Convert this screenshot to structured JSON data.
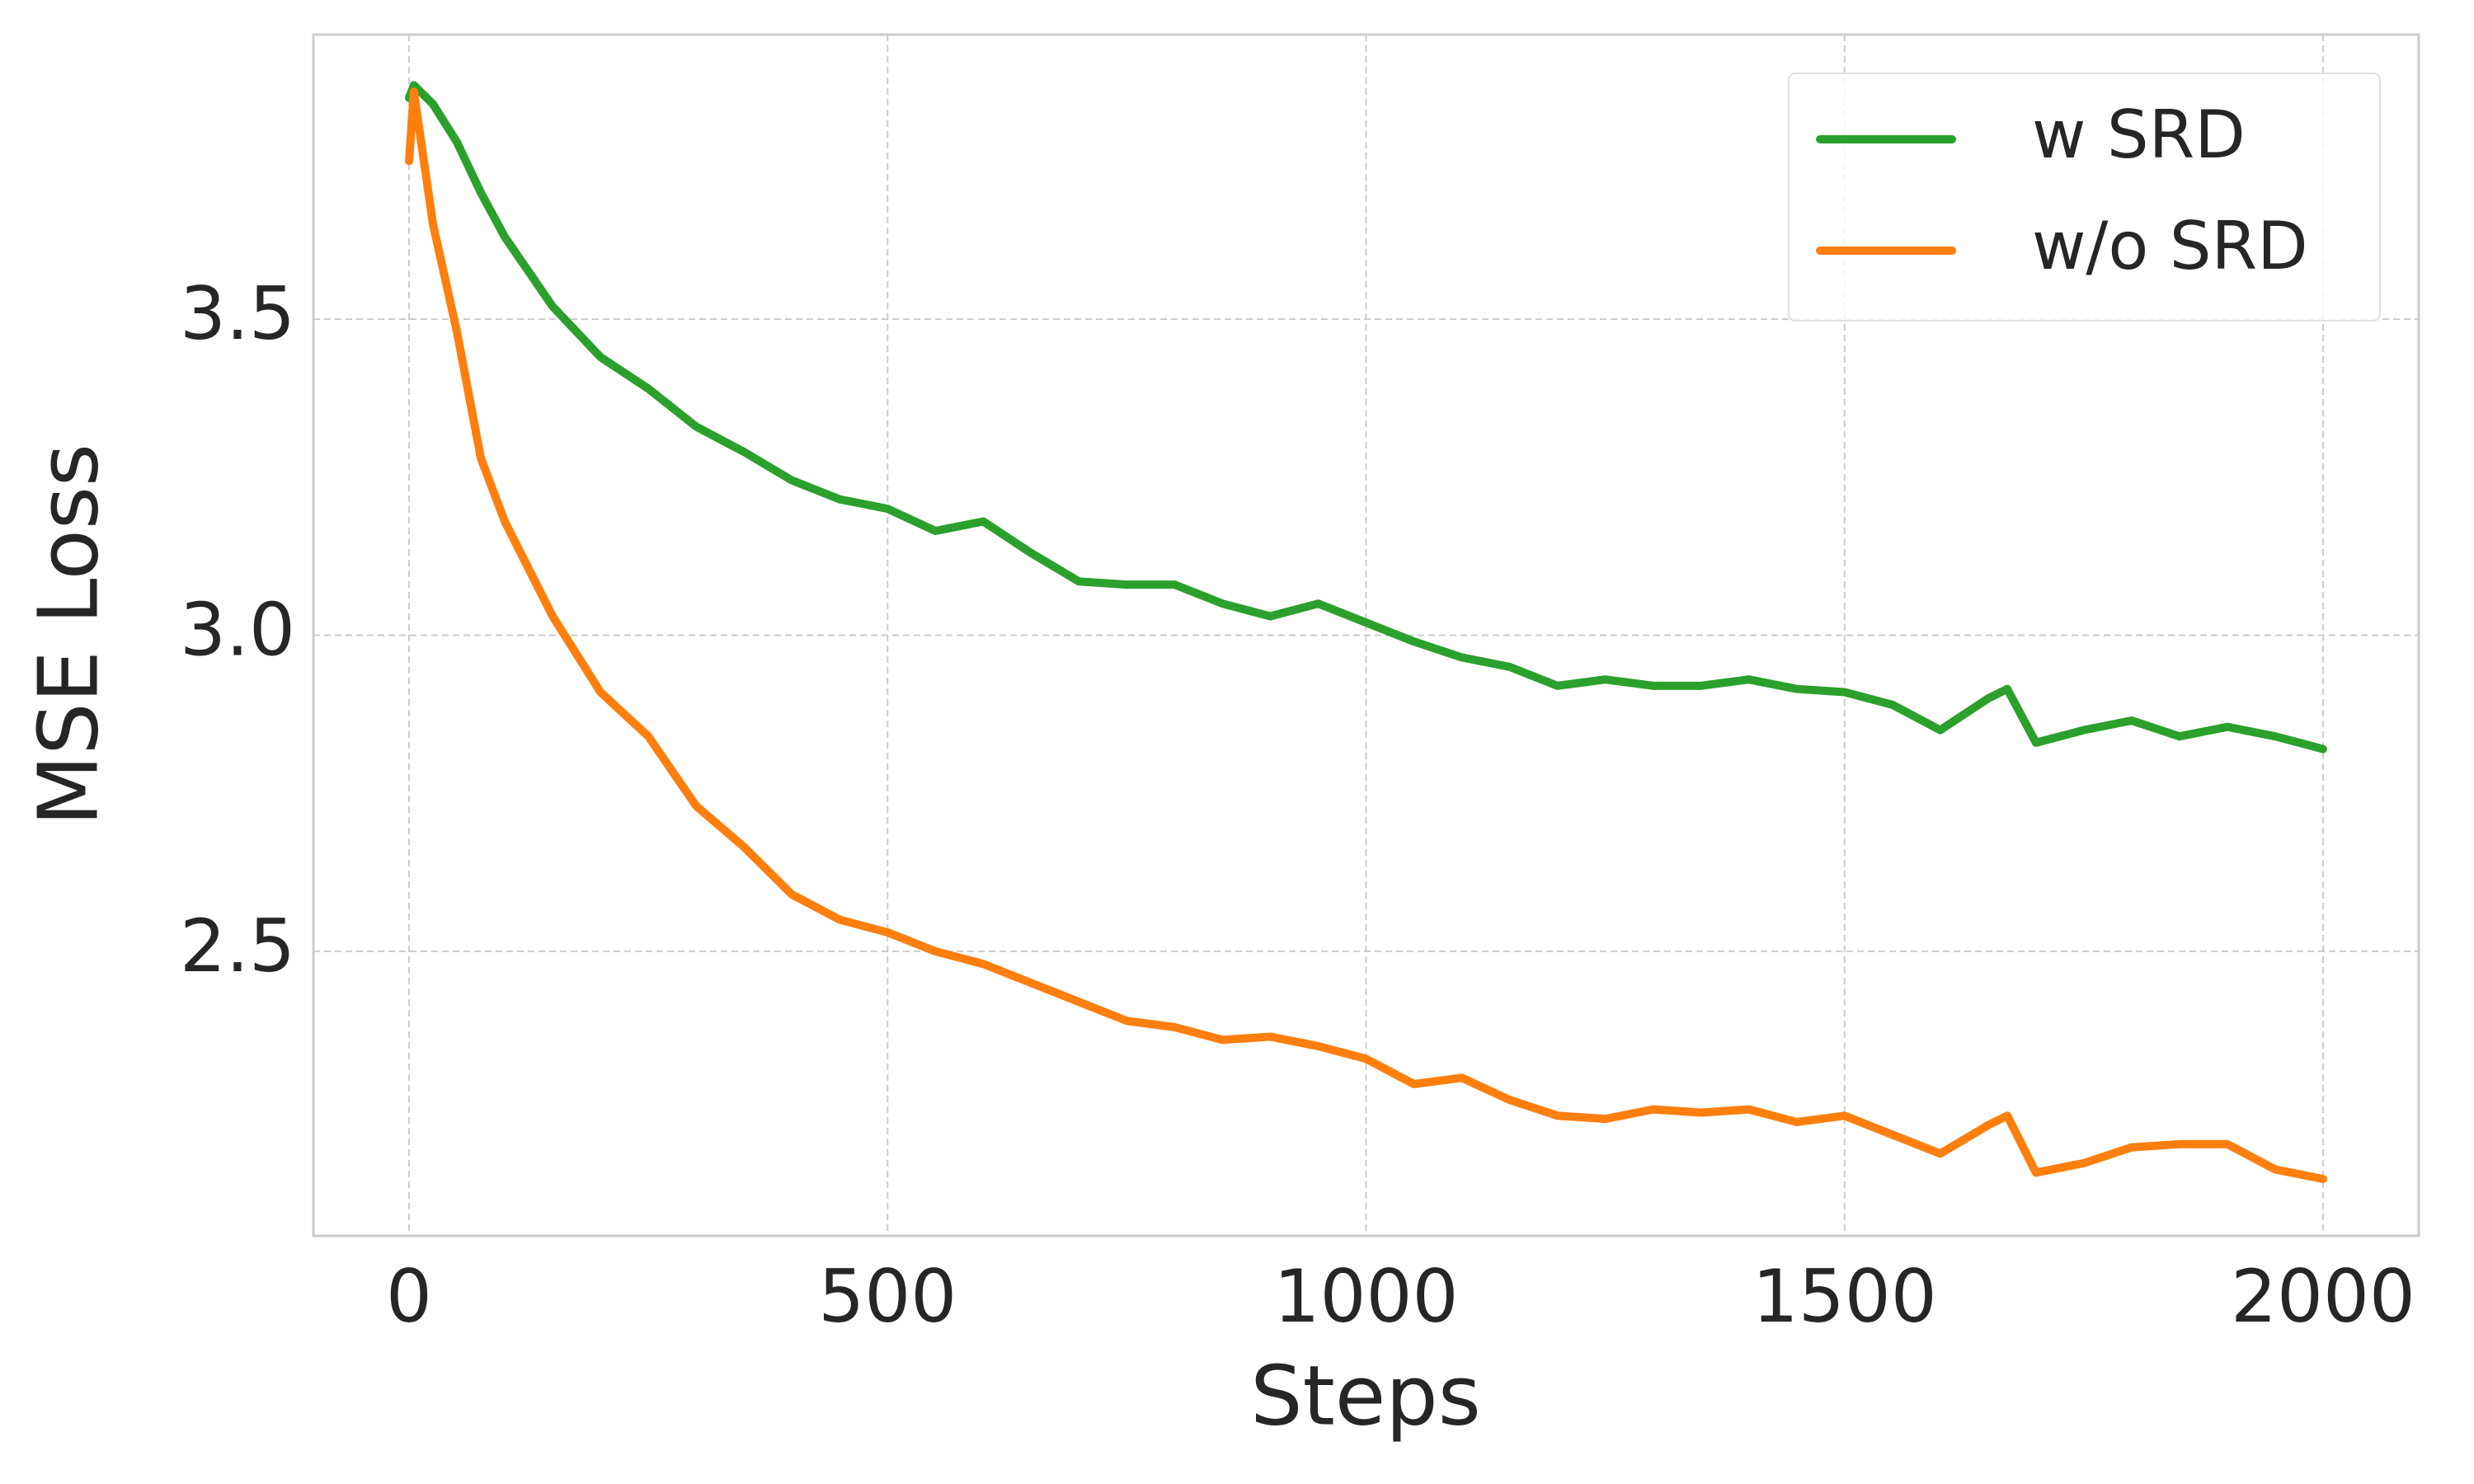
{
  "chart_data": {
    "type": "line",
    "xlabel": "Steps",
    "ylabel": "MSE Loss",
    "x": [
      0,
      5,
      25,
      50,
      75,
      100,
      150,
      200,
      250,
      300,
      350,
      400,
      450,
      500,
      550,
      600,
      650,
      700,
      750,
      800,
      850,
      900,
      950,
      1000,
      1050,
      1100,
      1150,
      1200,
      1250,
      1300,
      1350,
      1400,
      1450,
      1500,
      1550,
      1600,
      1650,
      1670,
      1700,
      1750,
      1800,
      1850,
      1900,
      1950,
      2000
    ],
    "series": [
      {
        "name": "w SRD",
        "color": "#2ca02c",
        "values": [
          3.85,
          3.87,
          3.84,
          3.78,
          3.7,
          3.63,
          3.52,
          3.44,
          3.39,
          3.33,
          3.29,
          3.245,
          3.215,
          3.2,
          3.165,
          3.18,
          3.13,
          3.085,
          3.08,
          3.08,
          3.05,
          3.03,
          3.05,
          3.02,
          2.99,
          2.965,
          2.95,
          2.92,
          2.93,
          2.92,
          2.92,
          2.93,
          2.915,
          2.91,
          2.89,
          2.85,
          2.9,
          2.915,
          2.83,
          2.85,
          2.865,
          2.84,
          2.855,
          2.84,
          2.82
        ]
      },
      {
        "name": "w/o SRD",
        "color": "#ff7f0e",
        "values": [
          3.75,
          3.86,
          3.65,
          3.48,
          3.28,
          3.18,
          3.03,
          2.91,
          2.84,
          2.73,
          2.665,
          2.59,
          2.55,
          2.53,
          2.5,
          2.48,
          2.45,
          2.42,
          2.39,
          2.38,
          2.36,
          2.365,
          2.35,
          2.33,
          2.29,
          2.3,
          2.265,
          2.24,
          2.235,
          2.25,
          2.245,
          2.25,
          2.23,
          2.24,
          2.21,
          2.18,
          2.225,
          2.24,
          2.15,
          2.165,
          2.19,
          2.195,
          2.195,
          2.155,
          2.14
        ]
      }
    ],
    "xlim": [
      -100,
      2100
    ],
    "ylim": [
      2.05,
      3.95
    ],
    "xticks": [
      0,
      500,
      1000,
      1500,
      2000
    ],
    "yticks": [
      2.5,
      {
        "value": 3,
        "label": "3.0"
      },
      3.5
    ],
    "grid": true,
    "legend": "upper right"
  }
}
